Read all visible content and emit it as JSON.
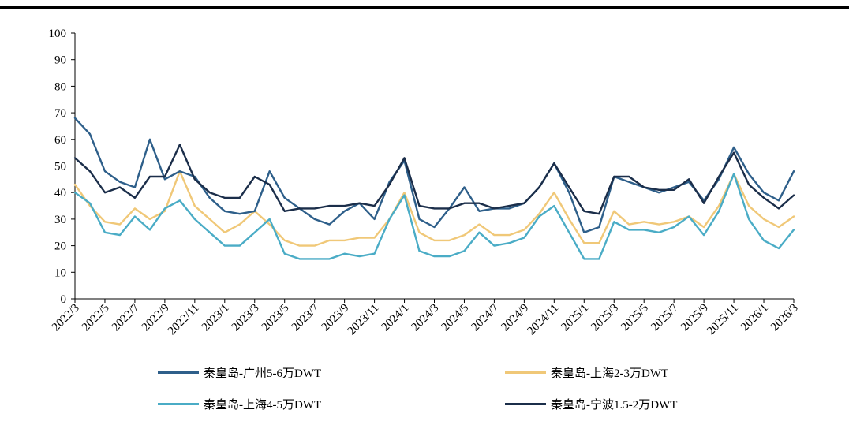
{
  "chart_data": {
    "type": "line",
    "ylim": [
      0,
      100
    ],
    "yticks": [
      "0",
      "10",
      "20",
      "30",
      "40",
      "50",
      "60",
      "70",
      "80",
      "90",
      "100"
    ],
    "xticks": [
      "2022/3",
      "2022/5",
      "2022/7",
      "2022/9",
      "2022/11",
      "2023/1",
      "2023/3",
      "2023/5",
      "2023/7",
      "2023/9",
      "2023/11",
      "2024/1",
      "2024/3",
      "2024/5",
      "2024/7",
      "2024/9",
      "2024/11",
      "2025/1",
      "2025/3",
      "2025/5",
      "2025/7",
      "2025/9",
      "2025/11",
      "2026/1",
      "2026/3"
    ],
    "grid": false,
    "legend_position": "bottom",
    "series": [
      {
        "name": "秦皇岛-广州5-6万DWT",
        "color": "#2e5f8a",
        "points": [
          [
            0,
            68
          ],
          [
            0.5,
            62
          ],
          [
            1,
            48
          ],
          [
            1.5,
            44
          ],
          [
            2,
            42
          ],
          [
            2.5,
            60
          ],
          [
            3,
            45
          ],
          [
            3.5,
            48
          ],
          [
            4,
            46
          ],
          [
            4.5,
            38
          ],
          [
            5,
            33
          ],
          [
            5.5,
            32
          ],
          [
            6,
            33
          ],
          [
            6.5,
            48
          ],
          [
            7,
            38
          ],
          [
            7.5,
            34
          ],
          [
            8,
            30
          ],
          [
            8.5,
            28
          ],
          [
            9,
            33
          ],
          [
            9.5,
            36
          ],
          [
            10,
            30
          ],
          [
            10.5,
            44
          ],
          [
            11,
            52
          ],
          [
            11.5,
            30
          ],
          [
            12,
            27
          ],
          [
            12.5,
            34
          ],
          [
            13,
            42
          ],
          [
            13.5,
            33
          ],
          [
            14,
            34
          ],
          [
            14.5,
            34
          ],
          [
            15,
            36
          ],
          [
            15.5,
            42
          ],
          [
            16,
            51
          ],
          [
            16.5,
            40
          ],
          [
            17,
            25
          ],
          [
            17.5,
            27
          ],
          [
            18,
            46
          ],
          [
            18.5,
            44
          ],
          [
            19,
            42
          ],
          [
            19.5,
            40
          ],
          [
            20,
            42
          ],
          [
            20.5,
            44
          ],
          [
            21,
            37
          ],
          [
            21.5,
            45
          ],
          [
            22,
            57
          ],
          [
            22.5,
            47
          ],
          [
            23,
            40
          ],
          [
            23.5,
            37
          ],
          [
            24,
            48
          ]
        ]
      },
      {
        "name": "秦皇岛-上海2-3万DWT",
        "color": "#f0c878",
        "points": [
          [
            0,
            43
          ],
          [
            0.5,
            35
          ],
          [
            1,
            29
          ],
          [
            1.5,
            28
          ],
          [
            2,
            34
          ],
          [
            2.5,
            30
          ],
          [
            3,
            33
          ],
          [
            3.5,
            48
          ],
          [
            4,
            35
          ],
          [
            4.5,
            30
          ],
          [
            5,
            25
          ],
          [
            5.5,
            28
          ],
          [
            6,
            33
          ],
          [
            6.5,
            28
          ],
          [
            7,
            22
          ],
          [
            7.5,
            20
          ],
          [
            8,
            20
          ],
          [
            8.5,
            22
          ],
          [
            9,
            22
          ],
          [
            9.5,
            23
          ],
          [
            10,
            23
          ],
          [
            10.5,
            30
          ],
          [
            11,
            40
          ],
          [
            11.5,
            25
          ],
          [
            12,
            22
          ],
          [
            12.5,
            22
          ],
          [
            13,
            24
          ],
          [
            13.5,
            28
          ],
          [
            14,
            24
          ],
          [
            14.5,
            24
          ],
          [
            15,
            26
          ],
          [
            15.5,
            32
          ],
          [
            16,
            40
          ],
          [
            16.5,
            30
          ],
          [
            17,
            21
          ],
          [
            17.5,
            21
          ],
          [
            18,
            33
          ],
          [
            18.5,
            28
          ],
          [
            19,
            29
          ],
          [
            19.5,
            28
          ],
          [
            20,
            29
          ],
          [
            20.5,
            31
          ],
          [
            21,
            27
          ],
          [
            21.5,
            35
          ],
          [
            22,
            47
          ],
          [
            22.5,
            35
          ],
          [
            23,
            30
          ],
          [
            23.5,
            27
          ],
          [
            24,
            31
          ]
        ]
      },
      {
        "name": "秦皇岛-上海4-5万DWT",
        "color": "#4aacc6",
        "points": [
          [
            0,
            40
          ],
          [
            0.5,
            36
          ],
          [
            1,
            25
          ],
          [
            1.5,
            24
          ],
          [
            2,
            31
          ],
          [
            2.5,
            26
          ],
          [
            3,
            34
          ],
          [
            3.5,
            37
          ],
          [
            4,
            30
          ],
          [
            4.5,
            25
          ],
          [
            5,
            20
          ],
          [
            5.5,
            20
          ],
          [
            6,
            25
          ],
          [
            6.5,
            30
          ],
          [
            7,
            17
          ],
          [
            7.5,
            15
          ],
          [
            8,
            15
          ],
          [
            8.5,
            15
          ],
          [
            9,
            17
          ],
          [
            9.5,
            16
          ],
          [
            10,
            17
          ],
          [
            10.5,
            30
          ],
          [
            11,
            39
          ],
          [
            11.5,
            18
          ],
          [
            12,
            16
          ],
          [
            12.5,
            16
          ],
          [
            13,
            18
          ],
          [
            13.5,
            25
          ],
          [
            14,
            20
          ],
          [
            14.5,
            21
          ],
          [
            15,
            23
          ],
          [
            15.5,
            31
          ],
          [
            16,
            35
          ],
          [
            16.5,
            25
          ],
          [
            17,
            15
          ],
          [
            17.5,
            15
          ],
          [
            18,
            29
          ],
          [
            18.5,
            26
          ],
          [
            19,
            26
          ],
          [
            19.5,
            25
          ],
          [
            20,
            27
          ],
          [
            20.5,
            31
          ],
          [
            21,
            24
          ],
          [
            21.5,
            33
          ],
          [
            22,
            47
          ],
          [
            22.5,
            30
          ],
          [
            23,
            22
          ],
          [
            23.5,
            19
          ],
          [
            24,
            26
          ]
        ]
      },
      {
        "name": "秦皇岛-宁波1.5-2万DWT",
        "color": "#1b2e4a",
        "points": [
          [
            0,
            53
          ],
          [
            0.5,
            48
          ],
          [
            1,
            40
          ],
          [
            1.5,
            42
          ],
          [
            2,
            38
          ],
          [
            2.5,
            46
          ],
          [
            3,
            46
          ],
          [
            3.5,
            58
          ],
          [
            4,
            45
          ],
          [
            4.5,
            40
          ],
          [
            5,
            38
          ],
          [
            5.5,
            38
          ],
          [
            6,
            46
          ],
          [
            6.5,
            43
          ],
          [
            7,
            33
          ],
          [
            7.5,
            34
          ],
          [
            8,
            34
          ],
          [
            8.5,
            35
          ],
          [
            9,
            35
          ],
          [
            9.5,
            36
          ],
          [
            10,
            35
          ],
          [
            10.5,
            43
          ],
          [
            11,
            53
          ],
          [
            11.5,
            35
          ],
          [
            12,
            34
          ],
          [
            12.5,
            34
          ],
          [
            13,
            36
          ],
          [
            13.5,
            36
          ],
          [
            14,
            34
          ],
          [
            14.5,
            35
          ],
          [
            15,
            36
          ],
          [
            15.5,
            42
          ],
          [
            16,
            51
          ],
          [
            16.5,
            42
          ],
          [
            17,
            33
          ],
          [
            17.5,
            32
          ],
          [
            18,
            46
          ],
          [
            18.5,
            46
          ],
          [
            19,
            42
          ],
          [
            19.5,
            41
          ],
          [
            20,
            41
          ],
          [
            20.5,
            45
          ],
          [
            21,
            36
          ],
          [
            21.5,
            46
          ],
          [
            22,
            55
          ],
          [
            22.5,
            43
          ],
          [
            23,
            38
          ],
          [
            23.5,
            34
          ],
          [
            24,
            39
          ]
        ]
      }
    ]
  }
}
